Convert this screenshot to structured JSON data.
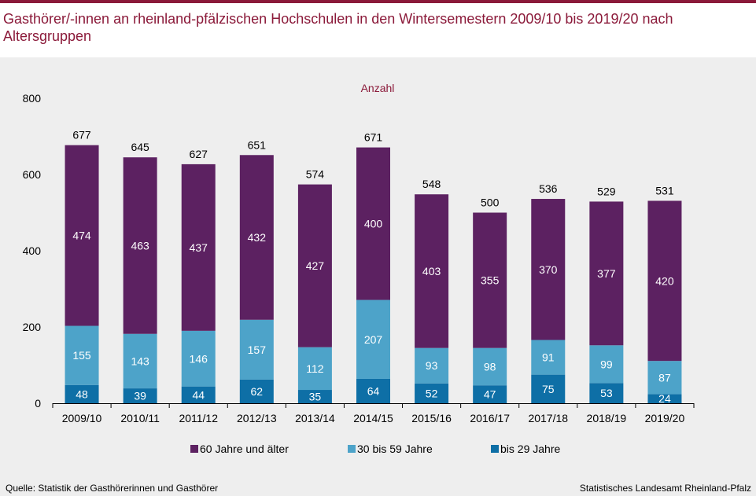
{
  "title": "Gasthörer/-innen an rheinland-pfälzischen Hochschulen in den Wintersemestern 2009/10 bis 2019/20 nach Altersgruppen",
  "source_left": "Quelle:  Statistik der Gasthörerinnen  und Gasthörer",
  "source_right": "Statistisches Landesamt Rheinland-Pfalz",
  "colors": {
    "accent": "#8b1a3a",
    "series_60_plus": "#5c2161",
    "series_30_59": "#4da3c9",
    "series_under_29": "#0e6fa6",
    "panel_bg": "#eeeeee"
  },
  "chart_data": {
    "type": "bar",
    "stacked": true,
    "ylabel": "Anzahl",
    "ylim": [
      0,
      800
    ],
    "yticks": [
      0,
      200,
      400,
      600,
      800
    ],
    "grid": false,
    "legend_position": "bottom",
    "categories": [
      "2009/10",
      "2010/11",
      "2011/12",
      "2012/13",
      "2013/14",
      "2014/15",
      "2015/16",
      "2016/17",
      "2017/18",
      "2018/19",
      "2019/20"
    ],
    "series": [
      {
        "name": "bis 29 Jahre",
        "color": "#0e6fa6",
        "values": [
          48,
          39,
          44,
          62,
          35,
          64,
          52,
          47,
          75,
          53,
          24
        ]
      },
      {
        "name": "30 bis 59 Jahre",
        "color": "#4da3c9",
        "values": [
          155,
          143,
          146,
          157,
          112,
          207,
          93,
          98,
          91,
          99,
          87
        ]
      },
      {
        "name": "60 Jahre und älter",
        "color": "#5c2161",
        "values": [
          474,
          463,
          437,
          432,
          427,
          400,
          403,
          355,
          370,
          377,
          420
        ]
      }
    ],
    "totals": [
      677,
      645,
      627,
      651,
      574,
      671,
      548,
      500,
      536,
      529,
      531
    ],
    "legend_order": [
      "60 Jahre und älter",
      "30 bis 59 Jahre",
      "bis 29 Jahre"
    ]
  }
}
